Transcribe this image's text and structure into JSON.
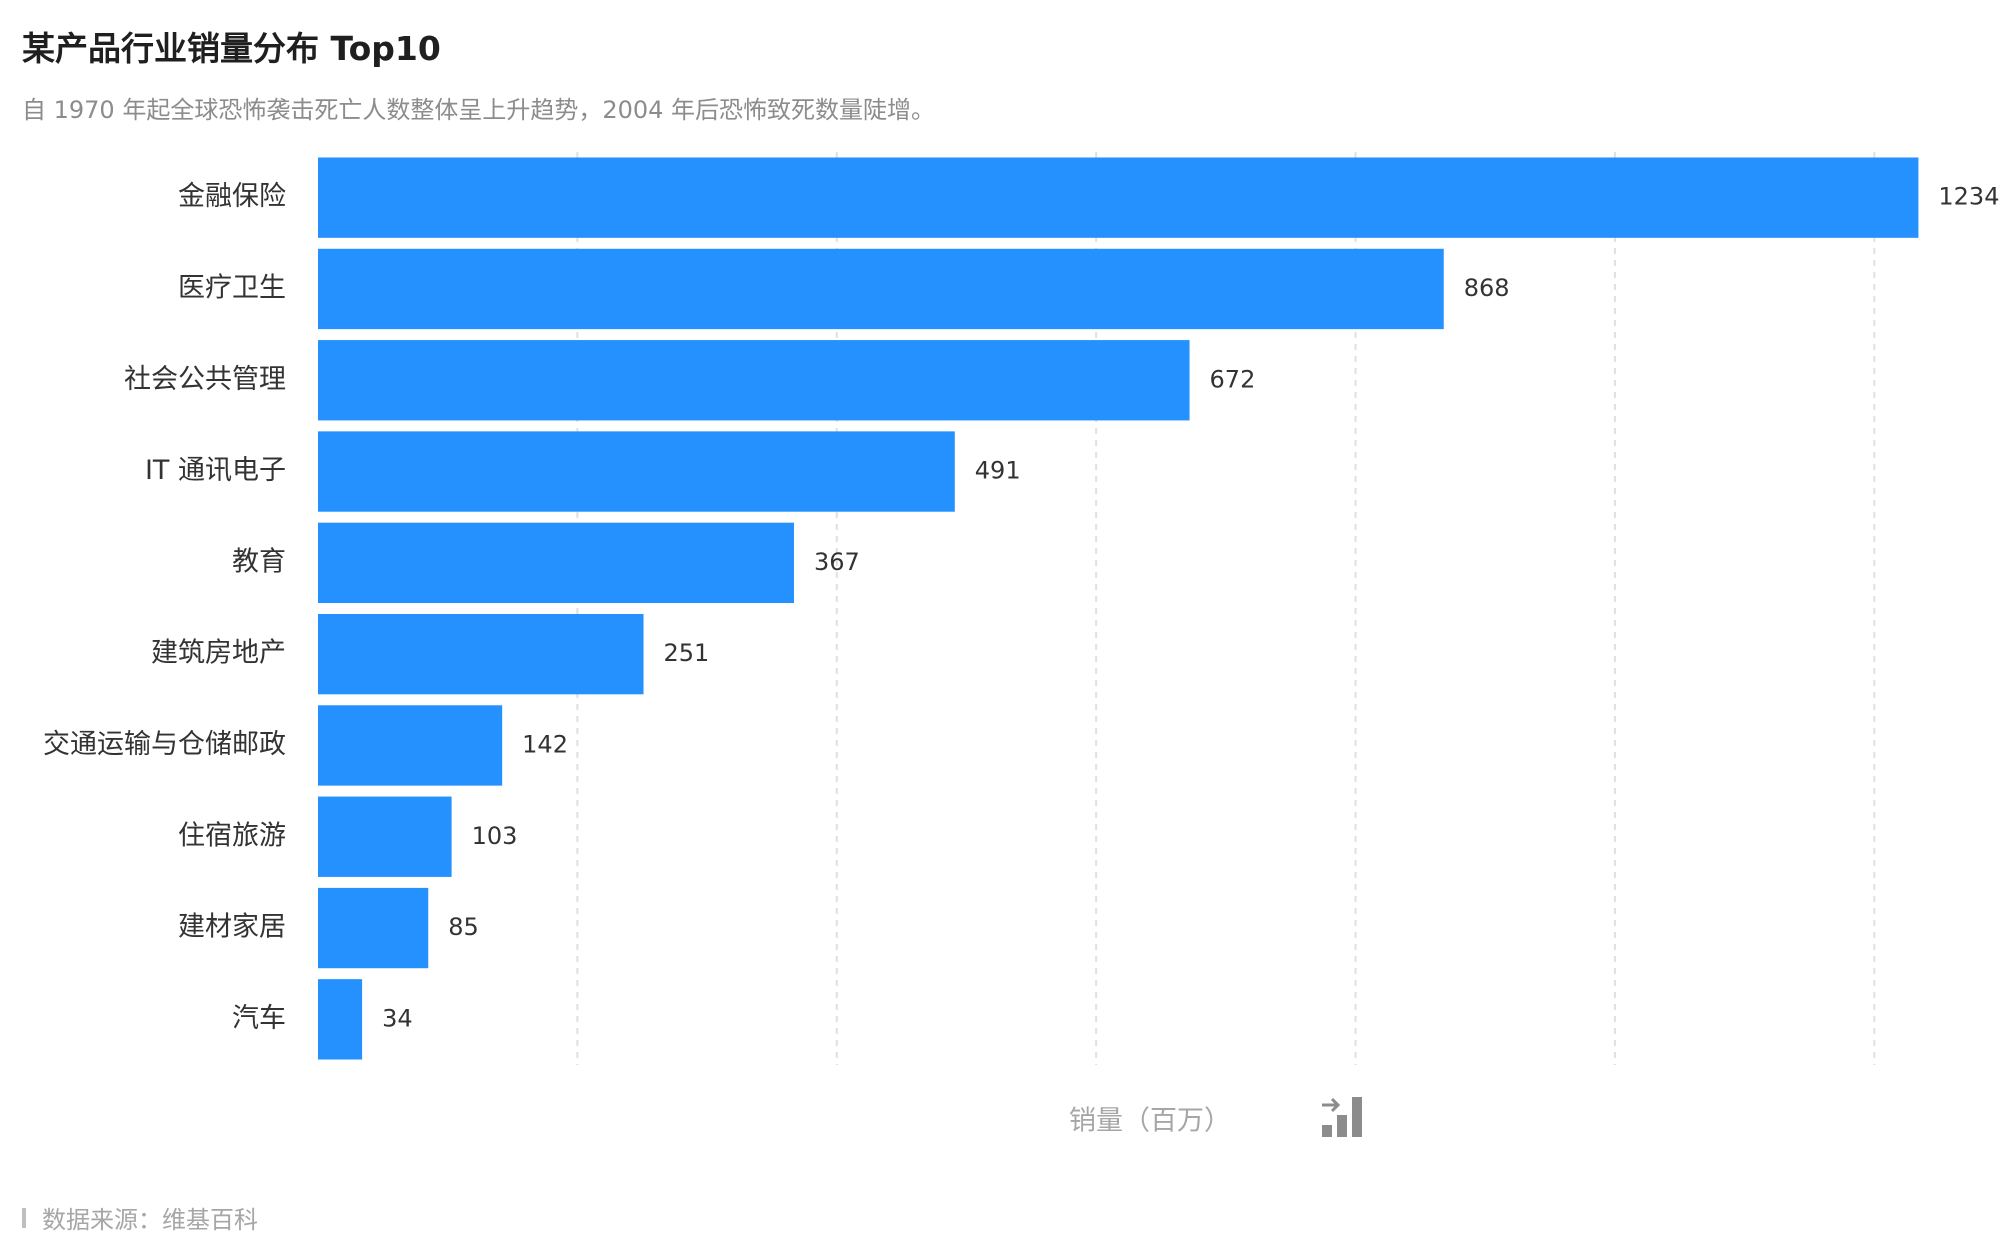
{
  "header": {
    "title": "某产品行业销量分布 Top10",
    "subtitle": "自 1970 年起全球恐怖袭击死亡人数整体呈上升趋势，2004 年后恐怖致死数量陡增。"
  },
  "footer": {
    "source": "数据来源：维基百科"
  },
  "controls": {
    "sort_icon": "sort-bars-icon"
  },
  "colors": {
    "bar": "#2491FE",
    "grid": "#e0e0e0",
    "label": "#333333",
    "axis_title": "#a6a6a6"
  },
  "chart_data": {
    "type": "bar",
    "orientation": "horizontal",
    "categories": [
      "金融保险",
      "医疗卫生",
      "社会公共管理",
      "IT 通讯电子",
      "教育",
      "建筑房地产",
      "交通运输与仓储邮政",
      "住宿旅游",
      "建材家居",
      "汽车"
    ],
    "values": [
      1234,
      868,
      672,
      491,
      367,
      251,
      142,
      103,
      85,
      34
    ],
    "xlabel": "销量（百万）",
    "ylabel": "",
    "xlim": [
      0,
      1300
    ],
    "grid": true,
    "data_labels": true
  }
}
